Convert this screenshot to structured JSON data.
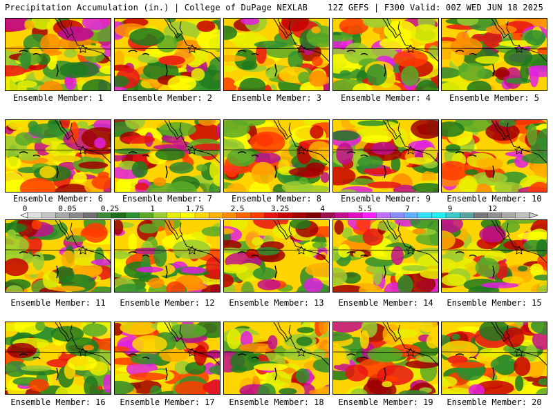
{
  "header": {
    "title_left": "Precipitation Accumulation (in.) | College of DuPage NEXLAB",
    "title_right": "12Z GEFS | F300 Valid: 00Z WED JUN 18 2025"
  },
  "members": [
    {
      "label": "Ensemble Member: 1"
    },
    {
      "label": "Ensemble Member: 2"
    },
    {
      "label": "Ensemble Member: 3"
    },
    {
      "label": "Ensemble Member: 4"
    },
    {
      "label": "Ensemble Member: 5"
    },
    {
      "label": "Ensemble Member: 6"
    },
    {
      "label": "Ensemble Member: 7"
    },
    {
      "label": "Ensemble Member: 8"
    },
    {
      "label": "Ensemble Member: 9"
    },
    {
      "label": "Ensemble Member: 10"
    },
    {
      "label": "Ensemble Member: 11"
    },
    {
      "label": "Ensemble Member: 12"
    },
    {
      "label": "Ensemble Member: 13"
    },
    {
      "label": "Ensemble Member: 14"
    },
    {
      "label": "Ensemble Member: 15"
    },
    {
      "label": "Ensemble Member: 16"
    },
    {
      "label": "Ensemble Member: 17"
    },
    {
      "label": "Ensemble Member: 18"
    },
    {
      "label": "Ensemble Member: 19"
    },
    {
      "label": "Ensemble Member: 20"
    }
  ],
  "colorbar": {
    "ticks": [
      "0",
      "0.05",
      "0.25",
      "1",
      "1.75",
      "2.5",
      "3.25",
      "4",
      "5.5",
      "7",
      "9",
      "12"
    ],
    "colors": [
      "#e0e0e0",
      "#c4c4c4",
      "#a8a8a8",
      "#8c8c8c",
      "#707070",
      "#3a8a3a",
      "#1e6e1e",
      "#2f8f2f",
      "#5aaa28",
      "#9acd32",
      "#e8f000",
      "#ffff00",
      "#ffd700",
      "#ffb000",
      "#ff8c00",
      "#ff6400",
      "#ff3c00",
      "#e81414",
      "#c80000",
      "#a00000",
      "#800000",
      "#9c1050",
      "#c0108c",
      "#e010c0",
      "#ff20ff",
      "#c070ff",
      "#8c8cff",
      "#60b0ff",
      "#30e0ff",
      "#20f0f0",
      "#40c8c8",
      "#5aa0a0",
      "#787878",
      "#909090",
      "#a8a8a8",
      "#c0c0c0"
    ]
  }
}
